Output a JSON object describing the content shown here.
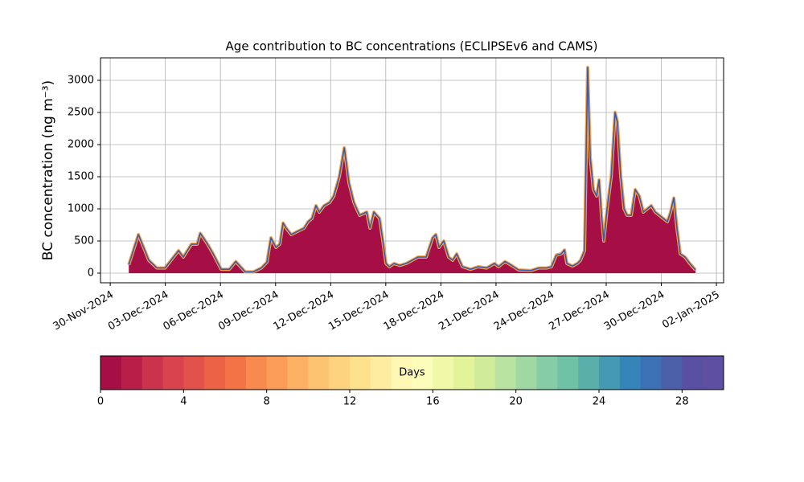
{
  "chart_data": [
    {
      "type": "area",
      "title": "Age contribution to BC concentrations (ECLIPSEv6 and CAMS)",
      "y_label": "BC concentration (ng m⁻³)",
      "x": [
        1.01,
        1.53,
        2.1,
        2.54,
        2.98,
        3.72,
        3.98,
        4.42,
        4.73,
        4.9,
        5.3,
        5.6,
        6.04,
        6.48,
        6.83,
        7.35,
        7.79,
        8.23,
        8.53,
        8.75,
        9.02,
        9.23,
        9.41,
        9.58,
        9.85,
        10.2,
        10.55,
        10.77,
        10.98,
        11.2,
        11.38,
        11.64,
        11.95,
        12.17,
        12.47,
        12.74,
        13.0,
        13.26,
        13.57,
        13.96,
        14.14,
        14.35,
        14.66,
        14.84,
        15.01,
        15.19,
        15.45,
        15.75,
        16.11,
        16.76,
        17.2,
        17.55,
        17.72,
        17.9,
        18.16,
        18.42,
        18.64,
        18.86,
        19.17,
        19.61,
        20.04,
        20.48,
        20.92,
        21.14,
        21.49,
        21.79,
        22.23,
        22.89,
        23.33,
        23.76,
        24.02,
        24.28,
        24.55,
        24.73,
        24.86,
        25.16,
        25.43,
        25.6,
        25.82,
        25.99,
        26.13,
        26.3,
        26.48,
        26.61,
        26.74,
        26.87,
        27.05,
        27.27,
        27.48,
        27.61,
        27.79,
        27.97,
        28.14,
        28.36,
        28.58,
        28.8,
        29.02,
        29.24,
        29.45,
        29.67,
        29.89,
        30.11,
        30.33,
        30.5,
        30.68,
        30.85,
        31.03,
        31.29,
        31.55,
        31.86
      ],
      "values": [
        130,
        600,
        200,
        80,
        80,
        350,
        250,
        450,
        450,
        620,
        450,
        300,
        60,
        60,
        180,
        20,
        20,
        80,
        170,
        550,
        400,
        450,
        780,
        700,
        600,
        650,
        700,
        800,
        850,
        1050,
        950,
        1050,
        1100,
        1200,
        1500,
        1950,
        1400,
        1100,
        900,
        950,
        700,
        950,
        850,
        500,
        150,
        100,
        150,
        120,
        150,
        250,
        250,
        550,
        600,
        400,
        500,
        250,
        200,
        300,
        100,
        60,
        100,
        80,
        150,
        100,
        180,
        130,
        50,
        40,
        80,
        80,
        100,
        280,
        300,
        360,
        150,
        110,
        150,
        200,
        350,
        3200,
        1800,
        1300,
        1200,
        1450,
        900,
        500,
        1000,
        1500,
        2500,
        2350,
        1500,
        1000,
        900,
        900,
        1300,
        1200,
        950,
        1000,
        1050,
        950,
        900,
        850,
        800,
        950,
        1170,
        700,
        300,
        250,
        150,
        50
      ],
      "fill_color": "#a50f45",
      "rim_color": "#f6a04d",
      "line_color": "#3b5ba5",
      "xlim": [
        -0.53,
        33.39
      ],
      "ylim": [
        -150,
        3350
      ],
      "xticks": [
        {
          "value": 0,
          "label": "30-Nov-2024"
        },
        {
          "value": 3,
          "label": "03-Dec-2024"
        },
        {
          "value": 6,
          "label": "06-Dec-2024"
        },
        {
          "value": 9,
          "label": "09-Dec-2024"
        },
        {
          "value": 12,
          "label": "12-Dec-2024"
        },
        {
          "value": 15,
          "label": "15-Dec-2024"
        },
        {
          "value": 18,
          "label": "18-Dec-2024"
        },
        {
          "value": 21,
          "label": "21-Dec-2024"
        },
        {
          "value": 24,
          "label": "24-Dec-2024"
        },
        {
          "value": 27,
          "label": "27-Dec-2024"
        },
        {
          "value": 30,
          "label": "30-Dec-2024"
        },
        {
          "value": 33,
          "label": "02-Jan-2025"
        }
      ],
      "yticks": [
        0,
        500,
        1000,
        1500,
        2000,
        2500,
        3000
      ],
      "grid": true
    },
    {
      "type": "colorbar",
      "label": "Days",
      "lim": [
        0,
        30
      ],
      "ticks": [
        0,
        4,
        8,
        12,
        16,
        20,
        24,
        28
      ],
      "colors": [
        "#a50f45",
        "#b81e48",
        "#cb334c",
        "#d8434e",
        "#e3524a",
        "#ec6246",
        "#f47346",
        "#f88a50",
        "#fb9d59",
        "#fdb164",
        "#fec370",
        "#fed37f",
        "#fee18d",
        "#feeda0",
        "#fff8b4",
        "#fbfdb9",
        "#f1f9a9",
        "#e3f399",
        "#d0ec9b",
        "#b9e3a0",
        "#a0d8a4",
        "#86cda5",
        "#6fc2a6",
        "#5aafaa",
        "#4599b3",
        "#3585bb",
        "#3d71b5",
        "#4c60aa",
        "#5a50a3",
        "#5e4fa2"
      ]
    }
  ]
}
